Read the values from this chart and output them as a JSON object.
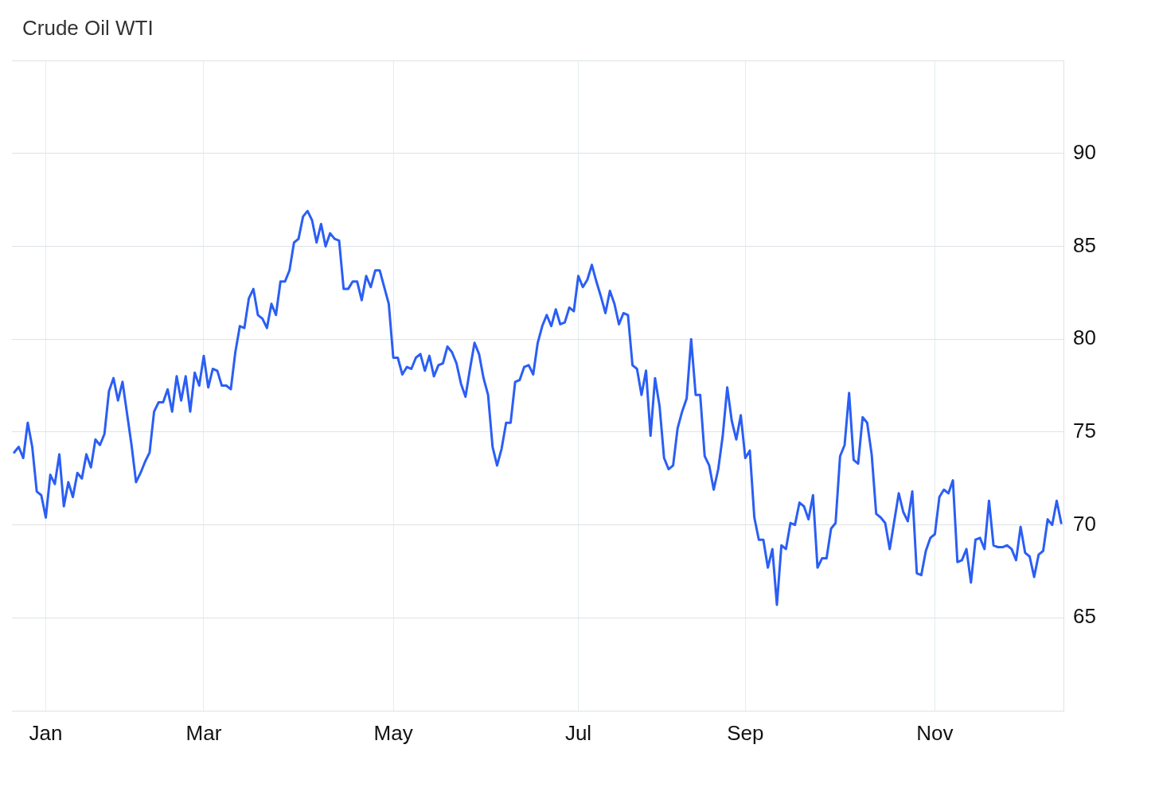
{
  "chart_data": {
    "type": "line",
    "title": "Crude Oil WTI",
    "categories": [
      null,
      null,
      null,
      null,
      null,
      null,
      null,
      "Jan",
      null,
      null,
      null,
      null,
      null,
      null,
      null,
      null,
      null,
      null,
      null,
      null,
      null,
      null,
      null,
      null,
      null,
      null,
      null,
      null,
      null,
      null,
      null,
      null,
      null,
      null,
      null,
      null,
      null,
      null,
      null,
      null,
      null,
      null,
      "Mar",
      null,
      null,
      null,
      null,
      null,
      null,
      null,
      null,
      null,
      null,
      null,
      null,
      null,
      null,
      null,
      null,
      null,
      null,
      null,
      null,
      null,
      null,
      null,
      null,
      null,
      null,
      null,
      null,
      null,
      null,
      null,
      null,
      null,
      null,
      null,
      null,
      null,
      null,
      null,
      null,
      null,
      "May",
      null,
      null,
      null,
      null,
      null,
      null,
      null,
      null,
      null,
      null,
      null,
      null,
      null,
      null,
      null,
      null,
      null,
      null,
      null,
      null,
      null,
      null,
      null,
      null,
      null,
      null,
      null,
      null,
      null,
      null,
      null,
      null,
      null,
      null,
      null,
      null,
      null,
      null,
      null,
      null,
      "Jul",
      null,
      null,
      null,
      null,
      null,
      null,
      null,
      null,
      null,
      null,
      null,
      null,
      null,
      null,
      null,
      null,
      null,
      null,
      null,
      null,
      null,
      null,
      null,
      null,
      null,
      null,
      null,
      null,
      null,
      null,
      null,
      null,
      null,
      null,
      null,
      null,
      "Sep",
      null,
      null,
      null,
      null,
      null,
      null,
      null,
      null,
      null,
      null,
      null,
      null,
      null,
      null,
      null,
      null,
      null,
      null,
      null,
      null,
      null,
      null,
      null,
      null,
      null,
      null,
      null,
      null,
      null,
      null,
      null,
      null,
      null,
      null,
      null,
      null,
      null,
      null,
      null,
      null,
      null,
      "Nov",
      null,
      null,
      null,
      null,
      null,
      null,
      null,
      null,
      null,
      null,
      null,
      null,
      null,
      null,
      null,
      null,
      null,
      null,
      null,
      null,
      null,
      null,
      null,
      null,
      null,
      null,
      null,
      null
    ],
    "series": [
      {
        "color": "#2a5ef5",
        "values": [
          73.9,
          74.2,
          73.6,
          75.5,
          74.2,
          71.8,
          71.6,
          70.4,
          72.7,
          72.2,
          73.8,
          71.0,
          72.3,
          71.5,
          72.8,
          72.5,
          73.8,
          73.1,
          74.6,
          74.3,
          74.9,
          77.2,
          77.9,
          76.7,
          77.7,
          76.0,
          74.3,
          72.3,
          72.8,
          73.4,
          73.9,
          76.1,
          76.6,
          76.6,
          77.3,
          76.1,
          78.0,
          76.7,
          78.0,
          76.1,
          78.2,
          77.5,
          79.1,
          77.4,
          78.4,
          78.3,
          77.5,
          77.5,
          77.3,
          79.3,
          80.7,
          80.6,
          82.2,
          82.7,
          81.3,
          81.1,
          80.6,
          81.9,
          81.3,
          83.1,
          83.1,
          83.7,
          85.2,
          85.4,
          86.6,
          86.9,
          86.4,
          85.2,
          86.2,
          85.0,
          85.7,
          85.4,
          85.3,
          82.7,
          82.7,
          83.1,
          83.1,
          82.1,
          83.4,
          82.8,
          83.7,
          83.7,
          82.8,
          81.9,
          79.0,
          79.0,
          78.1,
          78.5,
          78.4,
          79.0,
          79.2,
          78.3,
          79.1,
          78.0,
          78.6,
          78.7,
          79.6,
          79.3,
          78.7,
          77.6,
          76.9,
          78.4,
          79.8,
          79.2,
          77.9,
          77.0,
          74.2,
          73.2,
          74.1,
          75.5,
          75.5,
          77.7,
          77.8,
          78.5,
          78.6,
          78.1,
          79.8,
          80.7,
          81.3,
          80.7,
          81.6,
          80.8,
          80.9,
          81.7,
          81.5,
          83.4,
          82.8,
          83.2,
          84.0,
          83.1,
          82.3,
          81.4,
          82.6,
          81.9,
          80.8,
          81.4,
          81.3,
          78.6,
          78.4,
          77.0,
          78.3,
          74.8,
          77.9,
          76.4,
          73.6,
          73.0,
          73.2,
          75.2,
          76.1,
          76.8,
          80.0,
          77.0,
          77.0,
          73.7,
          73.2,
          71.9,
          73.0,
          74.8,
          77.4,
          75.6,
          74.6,
          75.9,
          73.6,
          74.0,
          70.4,
          69.2,
          69.2,
          67.7,
          68.7,
          65.7,
          68.9,
          68.7,
          70.1,
          70.0,
          71.2,
          71.0,
          70.3,
          71.6,
          67.7,
          68.2,
          68.2,
          69.8,
          70.1,
          73.7,
          74.3,
          77.1,
          73.5,
          73.3,
          75.8,
          75.5,
          73.8,
          70.6,
          70.4,
          70.1,
          68.7,
          70.2,
          71.7,
          70.7,
          70.2,
          71.8,
          67.4,
          67.3,
          68.6,
          69.3,
          69.5,
          71.5,
          71.9,
          71.7,
          72.4,
          68.0,
          68.1,
          68.7,
          66.9,
          69.2,
          69.3,
          68.7,
          71.3,
          68.9,
          68.8,
          68.8,
          68.9,
          68.7,
          68.1,
          69.9,
          68.5,
          68.3,
          67.2,
          68.4,
          68.6,
          70.3,
          70.0,
          71.3,
          70.1
        ]
      }
    ],
    "ylim": [
      60,
      95
    ],
    "yticks": [
      65,
      70,
      75,
      80,
      85,
      90
    ],
    "grid": true,
    "legend": false,
    "marker": "none",
    "line_style": "solid"
  }
}
